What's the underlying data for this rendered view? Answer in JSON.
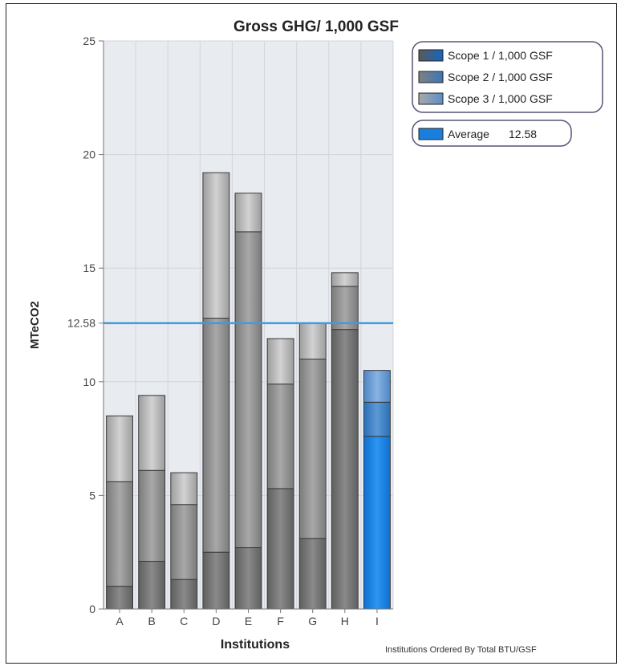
{
  "chart_data": {
    "type": "bar",
    "stacked": true,
    "title": "Gross GHG/ 1,000 GSF",
    "xlabel": "Institutions",
    "ylabel": "MTeCO2",
    "footnote": "Institutions Ordered By Total BTU/GSF",
    "ylim": [
      0,
      25
    ],
    "yticks": [
      0,
      5,
      10,
      15,
      20,
      25
    ],
    "grid": true,
    "legend_position": "top-right",
    "categories": [
      "A",
      "B",
      "C",
      "D",
      "E",
      "F",
      "G",
      "H",
      "I"
    ],
    "highlight_category": "I",
    "series": [
      {
        "name": "Scope 1 / 1,000 GSF",
        "values": [
          1.0,
          2.1,
          1.3,
          2.5,
          2.7,
          5.3,
          3.1,
          12.3,
          7.6
        ]
      },
      {
        "name": "Scope 2 / 1,000 GSF",
        "values": [
          4.6,
          4.0,
          3.3,
          10.3,
          13.9,
          4.6,
          7.9,
          1.9,
          1.5
        ]
      },
      {
        "name": "Scope 3 / 1,000 GSF",
        "values": [
          2.9,
          3.3,
          1.4,
          6.4,
          1.7,
          2.0,
          1.6,
          0.6,
          1.4
        ]
      }
    ],
    "average": {
      "label": "Average",
      "value": 12.58,
      "value_text": "12.58"
    },
    "colors": {
      "average_line": "#3d9be0",
      "highlight_bar": "#1a7fdc",
      "plot_background": "#e8ebef",
      "grid": "#d2d5da"
    }
  }
}
